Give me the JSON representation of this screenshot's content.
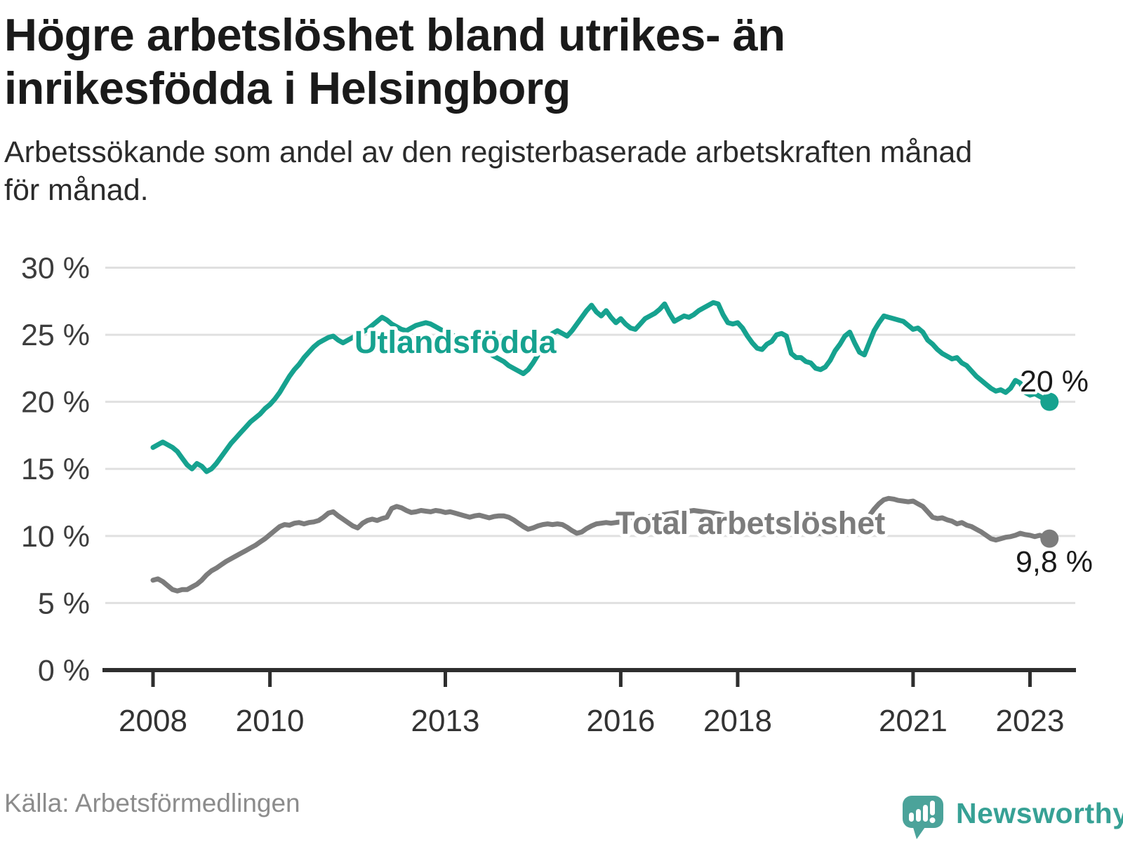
{
  "header": {
    "title_lines": [
      "Högre arbetslöshet bland utrikes- än",
      "inrikesfödda i Helsingborg"
    ],
    "subtitle_lines": [
      "Arbetssökande som andel av den registerbaserade arbetskraften månad",
      "för månad."
    ]
  },
  "footer": {
    "source": "Källa: Arbetsförmedlingen",
    "brand_name": "Newsworthy",
    "brand_color": "#37a195",
    "logo_bubble_color": "#4ba39a"
  },
  "chart_data": {
    "type": "line",
    "title": "Högre arbetslöshet bland utrikes- än inrikesfödda i Helsingborg",
    "subtitle": "Arbetssökande som andel av den registerbaserade arbetskraften månad för månad.",
    "x_unit": "month",
    "x_start_year": 2008,
    "xlim": [
      2007.16,
      2023.78
    ],
    "ylim": [
      0,
      30
    ],
    "grid": "horizontal",
    "legend_position": "inline-labels",
    "y_axis": {
      "tick_values": [
        0,
        5,
        10,
        15,
        20,
        25,
        30
      ],
      "tick_labels": [
        "0 %",
        "5 %",
        "10 %",
        "15 %",
        "20 %",
        "25 %",
        "30 %"
      ],
      "gridline_values": [
        5,
        10,
        15,
        20,
        25,
        30
      ]
    },
    "x_axis": {
      "tick_values": [
        2008,
        2010,
        2013,
        2016,
        2018,
        2021,
        2023
      ],
      "tick_labels": [
        "2008",
        "2010",
        "2013",
        "2016",
        "2018",
        "2021",
        "2023"
      ]
    },
    "series": [
      {
        "name": "Utlandsfödda",
        "color": "#16a28f",
        "end_label": "20 %",
        "end_label_color": "#1a1a1a",
        "values": [
          16.6,
          16.8,
          17.0,
          16.8,
          16.6,
          16.3,
          15.8,
          15.3,
          15.0,
          15.4,
          15.2,
          14.8,
          15.0,
          15.4,
          15.9,
          16.4,
          16.9,
          17.3,
          17.7,
          18.1,
          18.5,
          18.8,
          19.1,
          19.5,
          19.8,
          20.2,
          20.7,
          21.3,
          21.9,
          22.4,
          22.8,
          23.3,
          23.7,
          24.1,
          24.4,
          24.6,
          24.8,
          24.9,
          24.6,
          24.4,
          24.6,
          24.8,
          25.0,
          25.2,
          25.4,
          25.7,
          26.0,
          26.3,
          26.1,
          25.8,
          25.6,
          25.4,
          25.3,
          25.5,
          25.7,
          25.8,
          25.9,
          25.8,
          25.6,
          25.4,
          25.2,
          25.0,
          24.9,
          24.7,
          24.5,
          24.4,
          24.2,
          24.0,
          23.8,
          23.6,
          23.4,
          23.2,
          23.0,
          22.7,
          22.5,
          22.3,
          22.1,
          22.4,
          22.9,
          23.5,
          24.1,
          24.7,
          25.1,
          25.3,
          25.1,
          24.9,
          25.3,
          25.8,
          26.3,
          26.8,
          27.2,
          26.7,
          26.4,
          26.8,
          26.3,
          25.9,
          26.2,
          25.8,
          25.5,
          25.4,
          25.8,
          26.2,
          26.4,
          26.6,
          26.9,
          27.3,
          26.6,
          26.0,
          26.2,
          26.4,
          26.3,
          26.5,
          26.8,
          27.0,
          27.2,
          27.4,
          27.3,
          26.5,
          25.9,
          25.8,
          25.9,
          25.5,
          24.9,
          24.4,
          24.0,
          23.9,
          24.3,
          24.5,
          25.0,
          25.1,
          24.9,
          23.6,
          23.3,
          23.3,
          23.0,
          22.9,
          22.5,
          22.4,
          22.6,
          23.1,
          23.8,
          24.3,
          24.9,
          25.2,
          24.4,
          23.7,
          23.5,
          24.4,
          25.3,
          25.9,
          26.4,
          26.3,
          26.2,
          26.1,
          26.0,
          25.7,
          25.4,
          25.5,
          25.2,
          24.6,
          24.3,
          23.9,
          23.6,
          23.4,
          23.2,
          23.3,
          22.9,
          22.7,
          22.3,
          21.9,
          21.6,
          21.3,
          21.0,
          20.8,
          20.9,
          20.7,
          21.0,
          21.6,
          21.4,
          20.7,
          20.5,
          20.6,
          20.4,
          20.2,
          20.0
        ]
      },
      {
        "name": "Total arbetslöshet",
        "color": "#7c7c7c",
        "end_label": "9,8 %",
        "end_label_color": "#1a1a1a",
        "values": [
          6.7,
          6.8,
          6.6,
          6.3,
          6.0,
          5.9,
          6.0,
          6.0,
          6.2,
          6.4,
          6.7,
          7.1,
          7.4,
          7.6,
          7.85,
          8.1,
          8.3,
          8.5,
          8.7,
          8.9,
          9.1,
          9.3,
          9.55,
          9.8,
          10.1,
          10.4,
          10.7,
          10.85,
          10.8,
          10.95,
          11.0,
          10.9,
          11.0,
          11.05,
          11.15,
          11.4,
          11.7,
          11.8,
          11.5,
          11.25,
          11.0,
          10.75,
          10.6,
          10.95,
          11.15,
          11.25,
          11.15,
          11.3,
          11.4,
          12.05,
          12.2,
          12.1,
          11.9,
          11.75,
          11.8,
          11.9,
          11.85,
          11.8,
          11.9,
          11.85,
          11.75,
          11.8,
          11.7,
          11.6,
          11.5,
          11.4,
          11.5,
          11.55,
          11.45,
          11.35,
          11.45,
          11.5,
          11.5,
          11.4,
          11.2,
          10.95,
          10.7,
          10.5,
          10.6,
          10.75,
          10.85,
          10.9,
          10.85,
          10.9,
          10.85,
          10.65,
          10.4,
          10.2,
          10.3,
          10.55,
          10.75,
          10.9,
          10.95,
          11.0,
          10.95,
          11.0,
          11.05,
          11.1,
          11.2,
          11.25,
          11.3,
          11.4,
          11.45,
          11.5,
          11.55,
          11.6,
          11.65,
          11.7,
          11.75,
          11.8,
          11.85,
          11.9,
          11.85,
          11.8,
          11.75,
          11.7,
          11.65,
          11.55,
          11.45,
          11.35,
          11.25,
          11.15,
          11.05,
          10.95,
          10.85,
          10.8,
          10.75,
          10.7,
          10.65,
          10.6,
          10.55,
          10.5,
          10.45,
          10.4,
          10.35,
          10.3,
          10.25,
          10.2,
          10.25,
          10.3,
          10.35,
          10.4,
          10.45,
          10.55,
          10.65,
          10.8,
          11.0,
          11.5,
          12.0,
          12.4,
          12.7,
          12.8,
          12.75,
          12.65,
          12.6,
          12.55,
          12.6,
          12.4,
          12.2,
          11.8,
          11.4,
          11.3,
          11.35,
          11.2,
          11.1,
          10.9,
          11.0,
          10.8,
          10.7,
          10.5,
          10.3,
          10.05,
          9.8,
          9.7,
          9.8,
          9.9,
          9.95,
          10.05,
          10.2,
          10.1,
          10.05,
          9.95,
          10.05,
          9.9,
          9.8
        ]
      }
    ]
  }
}
